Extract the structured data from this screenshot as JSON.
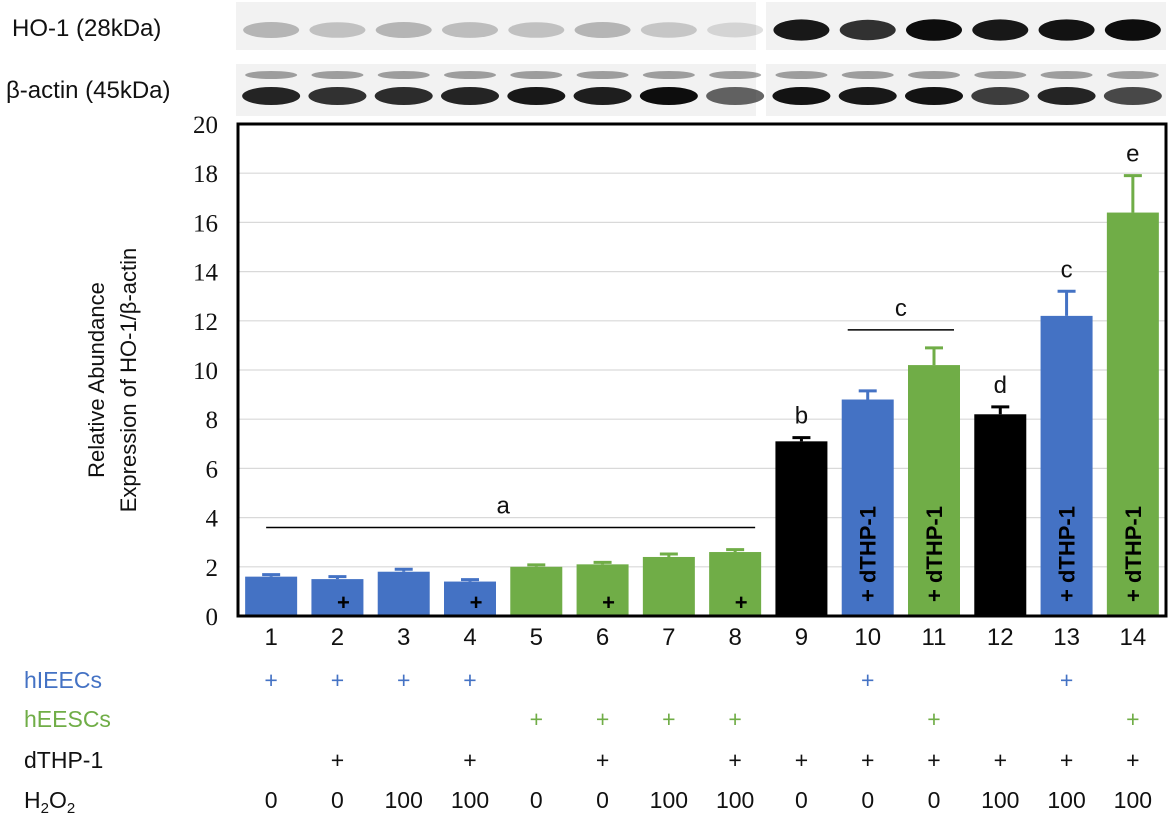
{
  "blots": [
    {
      "label": "HO-1 (28kDa)"
    },
    {
      "label": "β-actin (45kDa)"
    }
  ],
  "chart_data": {
    "type": "bar",
    "ylabel": [
      "Relative Abundance",
      "Expression of HO-1/β-actin"
    ],
    "ylim": [
      0,
      20
    ],
    "yticks": [
      0,
      2,
      4,
      6,
      8,
      10,
      12,
      14,
      16,
      18,
      20
    ],
    "grid": true,
    "categories": [
      "1",
      "2",
      "3",
      "4",
      "5",
      "6",
      "7",
      "8",
      "9",
      "10",
      "11",
      "12",
      "13",
      "14"
    ],
    "values": [
      1.6,
      1.5,
      1.8,
      1.4,
      2.0,
      2.1,
      2.4,
      2.6,
      7.1,
      8.8,
      10.2,
      8.2,
      12.2,
      16.4
    ],
    "errors": [
      0.08,
      0.1,
      0.1,
      0.08,
      0.08,
      0.08,
      0.12,
      0.1,
      0.15,
      0.35,
      0.7,
      0.3,
      1.0,
      1.5
    ],
    "bar_colors": [
      "#4472C4",
      "#4472C4",
      "#4472C4",
      "#4472C4",
      "#70AD47",
      "#70AD47",
      "#70AD47",
      "#70AD47",
      "#000000",
      "#4472C4",
      "#70AD47",
      "#000000",
      "#4472C4",
      "#70AD47"
    ],
    "bar_marks": [
      "",
      "+",
      "",
      "+",
      "",
      "+",
      "",
      "+",
      "",
      "+ dTHP-1",
      "+ dTHP-1",
      "",
      "+ dTHP-1",
      "+ dTHP-1"
    ],
    "significance": [
      {
        "letter": "a",
        "from": "1",
        "to": "8"
      },
      {
        "letter": "b",
        "from": "9",
        "to": "9"
      },
      {
        "letter": "c",
        "from": "10",
        "to": "11"
      },
      {
        "letter": "d",
        "from": "12",
        "to": "12"
      },
      {
        "letter": "c",
        "from": "13",
        "to": "13"
      },
      {
        "letter": "e",
        "from": "14",
        "to": "14"
      }
    ]
  },
  "conditions": [
    {
      "label": "hIEECs",
      "color": "#4472C4",
      "values": [
        "+",
        "+",
        "+",
        "+",
        "",
        "",
        "",
        "",
        "",
        "+",
        "",
        "",
        "+",
        ""
      ]
    },
    {
      "label": "hEESCs",
      "color": "#70AD47",
      "values": [
        "",
        "",
        "",
        "",
        "+",
        "+",
        "+",
        "+",
        "",
        "",
        "+",
        "",
        "",
        "+"
      ]
    },
    {
      "label": "dTHP-1",
      "color": "#111111",
      "values": [
        "",
        "+",
        "",
        "+",
        "",
        "+",
        "",
        "+",
        "+",
        "+",
        "+",
        "+",
        "+",
        "+"
      ]
    },
    {
      "label": "H2O2",
      "color": "#111111",
      "values": [
        "0",
        "0",
        "100",
        "100",
        "0",
        "0",
        "100",
        "100",
        "0",
        "0",
        "0",
        "100",
        "100",
        "100"
      ]
    }
  ]
}
